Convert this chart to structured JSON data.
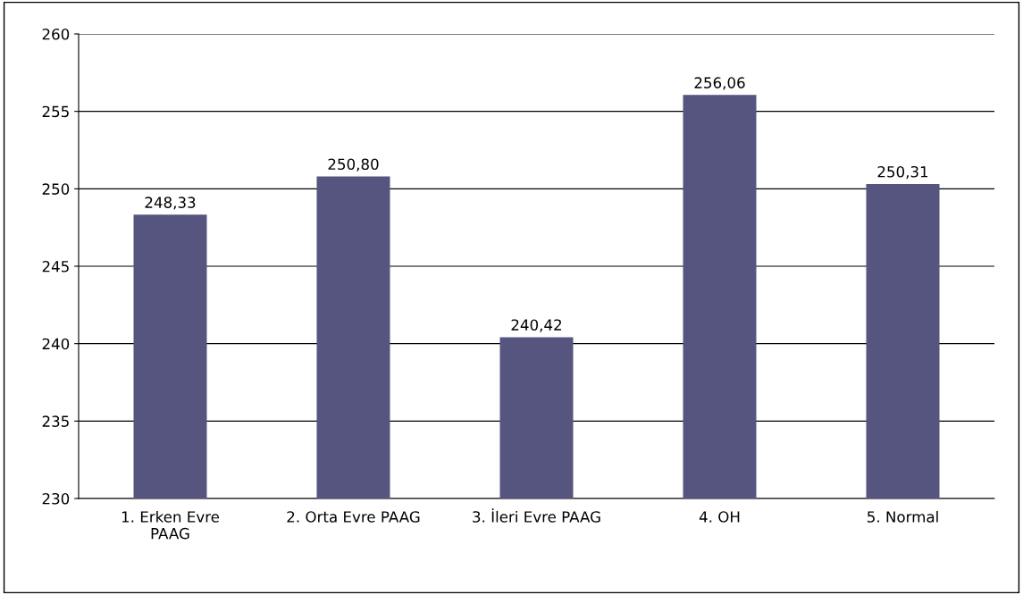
{
  "chart_data": {
    "type": "bar",
    "categories": [
      "1. Erken Evre\nPAAG",
      "2. Orta Evre PAAG",
      "3. İleri Evre PAAG",
      "4. OH",
      "5. Normal"
    ],
    "values": [
      248.33,
      250.8,
      240.42,
      256.06,
      250.31
    ],
    "value_labels": [
      "248,33",
      "250,80",
      "240,42",
      "256,06",
      "250,31"
    ],
    "color": "#55557f",
    "ylim": [
      230,
      260
    ],
    "yticks": [
      230,
      235,
      240,
      245,
      250,
      255,
      260
    ],
    "grid": "y",
    "legend": false
  }
}
